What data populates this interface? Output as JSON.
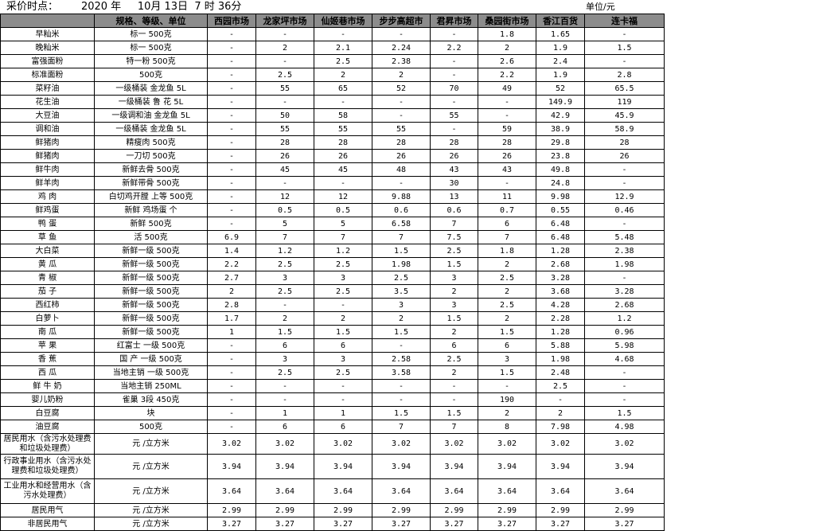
{
  "title": {
    "label": "采价时点：",
    "year": "2020 年",
    "month_day": "10月 13日",
    "time": "7 时  36分",
    "unit": "单位/元"
  },
  "headers": [
    "",
    "规格、等级、单位",
    "西园市场",
    "龙家坪市场",
    "仙姬巷市场",
    "步步高超市",
    "君昇市场",
    "桑园街市场",
    "香江百货",
    "连卡福"
  ],
  "rows": [
    [
      "早籼米",
      "标一 500克",
      "-",
      "-",
      "-",
      "-",
      "-",
      "1.8",
      "1.65",
      "-"
    ],
    [
      "晚籼米",
      "标一 500克",
      "-",
      "2",
      "2.1",
      "2.24",
      "2.2",
      "2",
      "1.9",
      "1.5"
    ],
    [
      "富强面粉",
      "特一粉  500克",
      "-",
      "-",
      "2.5",
      "2.38",
      "-",
      "2.6",
      "2.4",
      "-"
    ],
    [
      "标准面粉",
      "500克",
      "-",
      "2.5",
      "2",
      "2",
      "-",
      "2.2",
      "1.9",
      "2.8"
    ],
    [
      "菜籽油",
      "一级桶装  金龙鱼  5L",
      "-",
      "55",
      "65",
      "52",
      "70",
      "49",
      "52",
      "65.5"
    ],
    [
      "花生油",
      "一级桶装  鲁  花  5L",
      "-",
      "-",
      "-",
      "-",
      "-",
      "-",
      "149.9",
      "119"
    ],
    [
      "大豆油",
      "一级调和油 金龙鱼 5L",
      "-",
      "50",
      "58",
      "-",
      "55",
      "-",
      "42.9",
      "45.9"
    ],
    [
      "调和油",
      "一级桶装  金龙鱼  5L",
      "-",
      "55",
      "55",
      "55",
      "-",
      "59",
      "38.9",
      "58.9"
    ],
    [
      "鲜猪肉",
      "精瘦肉  500克",
      "-",
      "28",
      "28",
      "28",
      "28",
      "28",
      "29.8",
      "28"
    ],
    [
      "鲜猪肉",
      "一刀切  500克",
      "-",
      "26",
      "26",
      "26",
      "26",
      "26",
      "23.8",
      "26"
    ],
    [
      "鲜牛肉",
      "新鲜去骨 500克",
      "-",
      "45",
      "45",
      "48",
      "43",
      "43",
      "49.8",
      "-"
    ],
    [
      "鲜羊肉",
      "新鲜带骨 500克",
      "-",
      "-",
      "-",
      "-",
      "30",
      "-",
      "24.8",
      "-"
    ],
    [
      "鸡  肉",
      "白切鸡开膛 上等 500克",
      "-",
      "12",
      "12",
      "9.88",
      "13",
      "11",
      "9.98",
      "12.9"
    ],
    [
      "鲜鸡蛋",
      "新鲜 鸡场蛋  个",
      "-",
      "0.5",
      "0.5",
      "0.6",
      "0.6",
      "0.7",
      "0.55",
      "0.46"
    ],
    [
      "鸭  蛋",
      "新鲜  500克",
      "-",
      "5",
      "5",
      "6.58",
      "7",
      "6",
      "6.48",
      "-"
    ],
    [
      "草  鱼",
      "活  500克",
      "6.9",
      "7",
      "7",
      "7",
      "7.5",
      "7",
      "6.48",
      "5.48"
    ],
    [
      "大白菜",
      "新鲜一级 500克",
      "1.4",
      "1.2",
      "1.2",
      "1.5",
      "2.5",
      "1.8",
      "1.28",
      "2.38"
    ],
    [
      "黄  瓜",
      "新鲜一级 500克",
      "2.2",
      "2.5",
      "2.5",
      "1.98",
      "1.5",
      "2",
      "2.68",
      "1.98"
    ],
    [
      "青  椒",
      "新鲜一级 500克",
      "2.7",
      "3",
      "3",
      "2.5",
      "3",
      "2.5",
      "3.28",
      "-"
    ],
    [
      "茄  子",
      "新鲜一级 500克",
      "2",
      "2.5",
      "2.5",
      "3.5",
      "2",
      "2",
      "3.68",
      "3.28"
    ],
    [
      "西红柿",
      "新鲜一级 500克",
      "2.8",
      "-",
      "-",
      "3",
      "3",
      "2.5",
      "4.28",
      "2.68"
    ],
    [
      "白萝卜",
      "新鲜一级 500克",
      "1.7",
      "2",
      "2",
      "2",
      "1.5",
      "2",
      "2.28",
      "1.2"
    ],
    [
      "南  瓜",
      "新鲜一级 500克",
      "1",
      "1.5",
      "1.5",
      "1.5",
      "2",
      "1.5",
      "1.28",
      "0.96"
    ],
    [
      "苹  果",
      "红富士  一级  500克",
      "-",
      "6",
      "6",
      "-",
      "6",
      "6",
      "5.88",
      "5.98"
    ],
    [
      "香  蕉",
      "国  产  一级  500克",
      "-",
      "3",
      "3",
      "2.58",
      "2.5",
      "3",
      "1.98",
      "4.68"
    ],
    [
      "西  瓜",
      "当地主销 一级  500克",
      "-",
      "2.5",
      "2.5",
      "3.58",
      "2",
      "1.5",
      "2.48",
      "-"
    ],
    [
      "鲜 牛 奶",
      "当地主销  250ML",
      "-",
      "-",
      "-",
      "-",
      "-",
      "-",
      "2.5",
      "-"
    ],
    [
      "婴儿奶粉",
      "雀巢 3段  450克",
      "-",
      "-",
      "-",
      "-",
      "-",
      "190",
      "-",
      "-"
    ],
    [
      "白豆腐",
      "块",
      "-",
      "1",
      "1",
      "1.5",
      "1.5",
      "2",
      "2",
      "1.5"
    ],
    [
      "油豆腐",
      "500克",
      "-",
      "6",
      "6",
      "7",
      "7",
      "8",
      "7.98",
      "4.98"
    ],
    [
      "居民用水（含污水处理费和垃圾处理费）",
      "元 /立方米",
      "3.02",
      "3.02",
      "3.02",
      "3.02",
      "3.02",
      "3.02",
      "3.02",
      "3.02"
    ],
    [
      "行政事业用水（含污水处理费和垃圾处理费）",
      "元 /立方米",
      "3.94",
      "3.94",
      "3.94",
      "3.94",
      "3.94",
      "3.94",
      "3.94",
      "3.94"
    ],
    [
      "工业用水和经营用水（含污水处理费）",
      "元 /立方米",
      "3.64",
      "3.64",
      "3.64",
      "3.64",
      "3.64",
      "3.64",
      "3.64",
      "3.64"
    ],
    [
      "居民用气",
      "元 /立方米",
      "2.99",
      "2.99",
      "2.99",
      "2.99",
      "2.99",
      "2.99",
      "2.99",
      "2.99"
    ],
    [
      "非居民用气",
      "元 /立方米",
      "3.27",
      "3.27",
      "3.27",
      "3.27",
      "3.27",
      "3.27",
      "3.27",
      "3.27"
    ]
  ],
  "colors": {
    "header_bg": "#8c8c8c",
    "grid": "#000000"
  }
}
